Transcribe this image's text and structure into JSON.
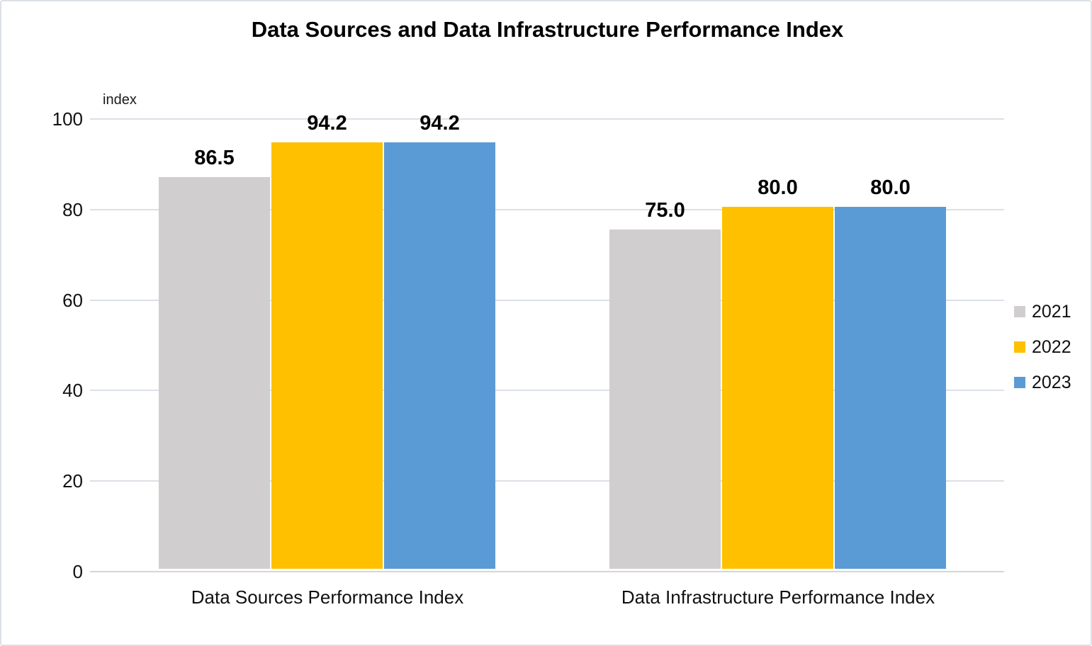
{
  "title": "Data Sources and Data Infrastructure Performance Index",
  "colors": {
    "series_2021": "#d0cece",
    "series_2022": "#ffc000",
    "series_2023": "#5b9bd5",
    "gridline": "#dbe0e6",
    "frame_border": "#dce1e7"
  },
  "chart_data": {
    "type": "bar",
    "title": "Data Sources and Data Infrastructure Performance Index",
    "ylabel": "index",
    "ylim": [
      0,
      100
    ],
    "yticks": [
      "100",
      "80",
      "60",
      "40",
      "20",
      "0"
    ],
    "grid": "horizontal",
    "legend_position": "right",
    "categories": [
      "Data Sources Performance Index",
      "Data Infrastructure Performance Index"
    ],
    "series": [
      {
        "name": "2021",
        "color": "#d0cece",
        "values": [
          86.5,
          75.0
        ],
        "labels": [
          "86.5",
          "75.0"
        ]
      },
      {
        "name": "2022",
        "color": "#ffc000",
        "values": [
          94.2,
          80.0
        ],
        "labels": [
          "94.2",
          "80.0"
        ]
      },
      {
        "name": "2023",
        "color": "#5b9bd5",
        "values": [
          94.2,
          80.0
        ],
        "labels": [
          "94.2",
          "80.0"
        ]
      }
    ]
  }
}
